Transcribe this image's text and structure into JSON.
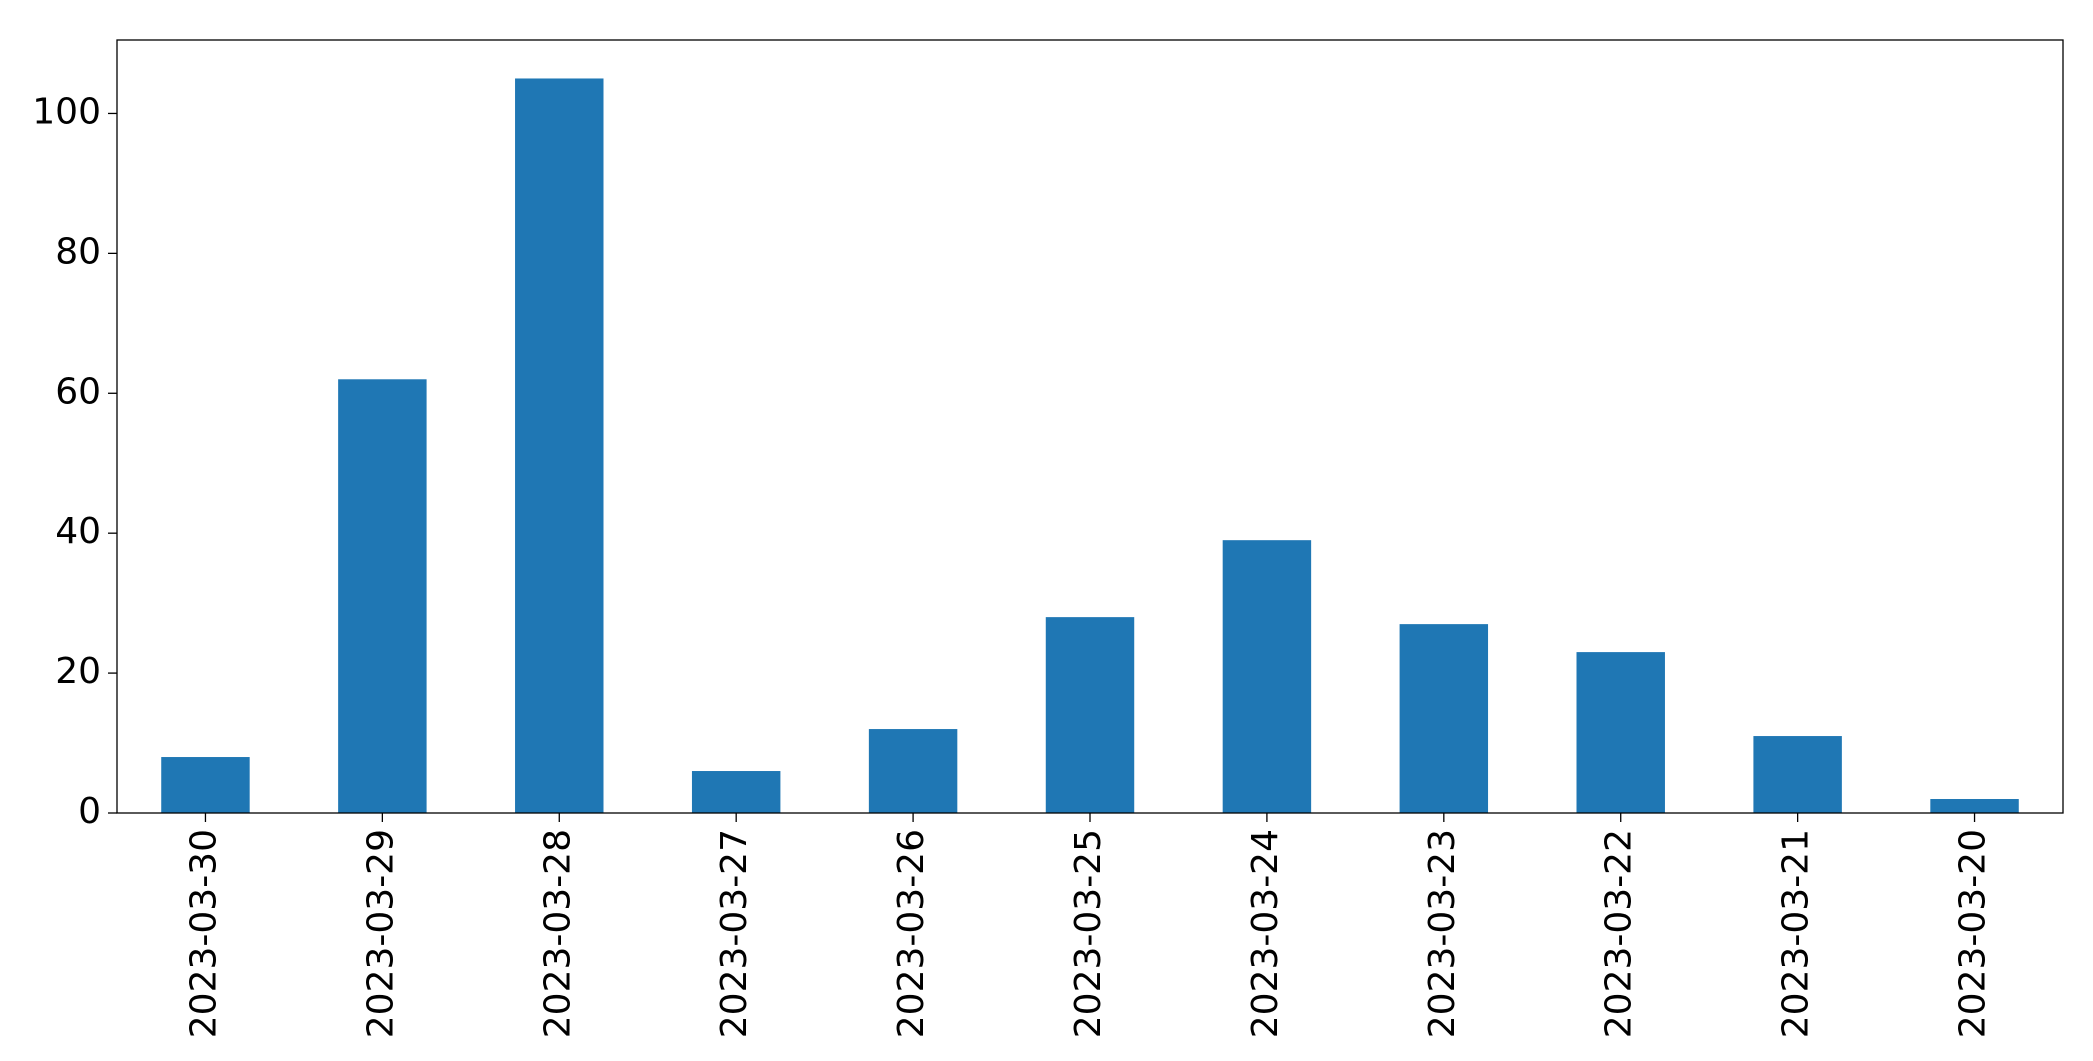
{
  "chart_data": {
    "type": "bar",
    "categories": [
      "2023-03-30",
      "2023-03-29",
      "2023-03-28",
      "2023-03-27",
      "2023-03-26",
      "2023-03-25",
      "2023-03-24",
      "2023-03-23",
      "2023-03-22",
      "2023-03-21",
      "2023-03-20"
    ],
    "values": [
      8,
      62,
      105,
      6,
      12,
      28,
      39,
      27,
      23,
      11,
      2
    ],
    "color": "#1f77b4",
    "ylim": [
      0,
      110.5
    ],
    "yticks": [
      0,
      20,
      40,
      60,
      80,
      100
    ],
    "grid": false
  }
}
